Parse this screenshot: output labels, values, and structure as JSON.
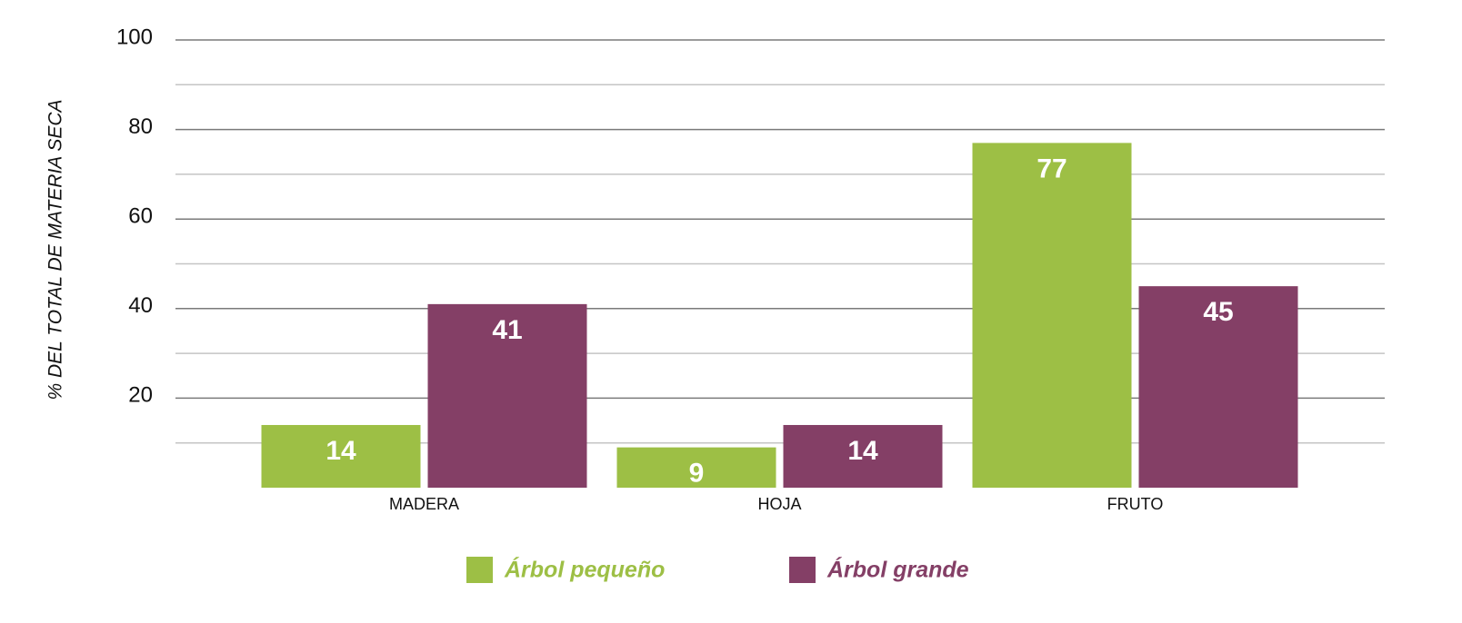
{
  "chart_data": {
    "type": "bar",
    "y_label": "% DEL TOTAL DE MATERIA SECA",
    "categories": [
      "MADERA",
      "HOJA",
      "FRUTO"
    ],
    "series": [
      {
        "name": "Árbol pequeño",
        "color": "#9dbf45",
        "values": [
          14,
          9,
          77
        ]
      },
      {
        "name": "Árbol grande",
        "color": "#843f66",
        "values": [
          41,
          14,
          45
        ]
      }
    ],
    "ylim": [
      0,
      100
    ],
    "yticks": [
      20,
      40,
      60,
      80,
      100
    ],
    "grid": true
  }
}
